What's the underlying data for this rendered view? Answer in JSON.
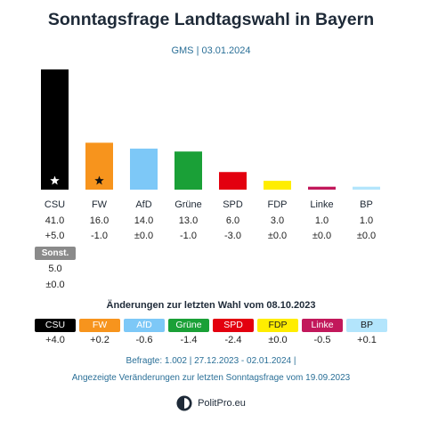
{
  "title": "Sonntagsfrage Landtagswahl in Bayern",
  "subtitle": "GMS | 03.01.2024",
  "chart_data": {
    "type": "bar",
    "categories": [
      "CSU",
      "FW",
      "AfD",
      "Grüne",
      "SPD",
      "FDP",
      "Linke",
      "BP"
    ],
    "values": [
      41.0,
      16.0,
      14.0,
      13.0,
      6.0,
      3.0,
      1.0,
      1.0
    ],
    "value_labels": [
      "41.0",
      "16.0",
      "14.0",
      "13.0",
      "6.0",
      "3.0",
      "1.0",
      "1.0"
    ],
    "change_labels": [
      "+5.0",
      "-1.0",
      "±0.0",
      "-1.0",
      "-3.0",
      "±0.0",
      "±0.0",
      "±0.0"
    ],
    "colors": [
      "#000000",
      "#f7941d",
      "#7dc8f7",
      "#1aa037",
      "#e3000f",
      "#ffed00",
      "#c2185b",
      "#b3e5fc"
    ],
    "starred": [
      "CSU",
      "FW"
    ],
    "ylim": [
      0,
      41
    ]
  },
  "sonstige": {
    "label": "Sonst.",
    "value": "5.0",
    "change": "±0.0",
    "color": "#8a8a8a"
  },
  "election_changes": {
    "title": "Änderungen zur letzten Wahl vom 08.10.2023",
    "labels": [
      "CSU",
      "FW",
      "AfD",
      "Grüne",
      "SPD",
      "FDP",
      "Linke",
      "BP"
    ],
    "values": [
      "+4.0",
      "+0.2",
      "-0.6",
      "-1.4",
      "-2.4",
      "±0.0",
      "-0.5",
      "+0.1"
    ],
    "colors": [
      "#000000",
      "#f7941d",
      "#7dc8f7",
      "#1aa037",
      "#e3000f",
      "#ffed00",
      "#c2185b",
      "#b3e5fc"
    ]
  },
  "footer": {
    "line1": "Befragte: 1.002 | 27.12.2023 - 02.01.2024 |",
    "line2": "Angezeigte Veränderungen zur letzten Sonntagsfrage vom 19.09.2023",
    "brand": "PolitPro.eu"
  }
}
